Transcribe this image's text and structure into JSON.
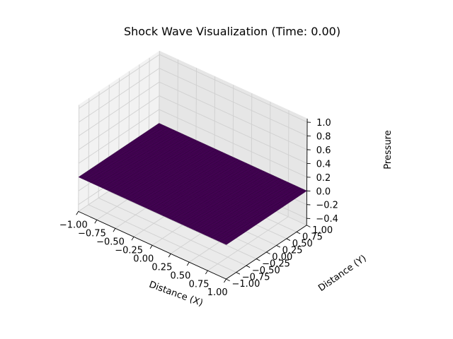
{
  "chart_data": {
    "type": "surface3d",
    "title": "Shock Wave Visualization (Time: 0.00)",
    "xlabel": "Distance (X)",
    "ylabel": "Distance (Y)",
    "zlabel": "Pressure",
    "xlim": [
      -1.0,
      1.0
    ],
    "ylim": [
      -1.0,
      1.0
    ],
    "zlim": [
      -0.5,
      1.05
    ],
    "xticks": [
      -1.0,
      -0.75,
      -0.5,
      -0.25,
      0.0,
      0.25,
      0.5,
      0.75,
      1.0
    ],
    "yticks": [
      -1.0,
      -0.75,
      -0.5,
      -0.25,
      0.0,
      0.25,
      0.5,
      0.75,
      1.0
    ],
    "zticks": [
      -0.4,
      -0.2,
      0.0,
      0.2,
      0.4,
      0.6,
      0.8,
      1.0
    ],
    "xtick_labels": [
      "−1.00",
      "−0.75",
      "−0.50",
      "−0.25",
      "0.00",
      "0.25",
      "0.50",
      "0.75",
      "1.00"
    ],
    "ytick_labels": [
      "−1.00",
      "−0.75",
      "−0.50",
      "−0.25",
      "0.00",
      "0.25",
      "0.50",
      "0.75",
      "1.00"
    ],
    "ztick_labels": [
      "−0.4",
      "−0.2",
      "0.0",
      "0.2",
      "0.4",
      "0.6",
      "0.8",
      "1.0"
    ],
    "surface": {
      "x_range": [
        -1.0,
        1.0
      ],
      "y_range": [
        -1.0,
        1.0
      ],
      "grid_points": 50,
      "z_value": 0.0,
      "colormap": "viridis",
      "face_color": "#440154",
      "edge_color": "#2a0036"
    },
    "grid": true,
    "pane_color": "#ebebeb"
  }
}
